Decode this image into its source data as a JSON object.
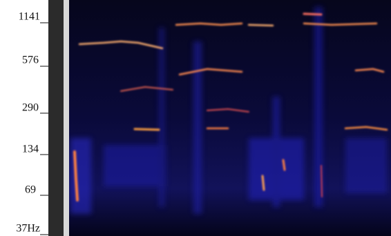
{
  "frequency_axis": {
    "labels": [
      "1141",
      "576",
      "290",
      "134",
      "69",
      "37Hz"
    ]
  }
}
